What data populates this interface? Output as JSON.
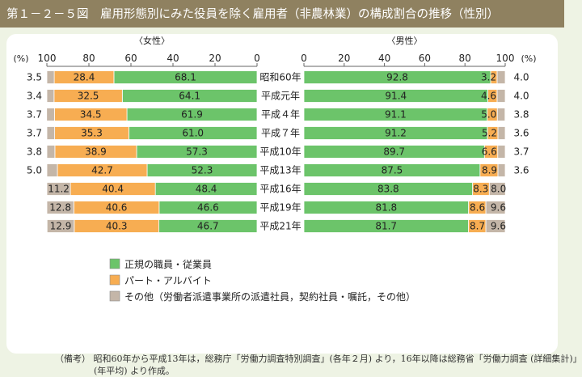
{
  "title": "第１－２－５図　雇用形態別にみた役員を除く雇用者（非農林業）の構成割合の推移（性別）",
  "female_heading": "〈女性〉",
  "male_heading": "〈男性〉",
  "pct_unit": "(%)",
  "legend": [
    {
      "label": "正規の職員・従業員",
      "color": "#6cc46a"
    },
    {
      "label": "パート・アルバイト",
      "color": "#f7ad52"
    },
    {
      "label": "その他（労働者派遣事業所の派遣社員，契約社員・嘱託，その他）",
      "color": "#c4b6a8"
    }
  ],
  "notes": {
    "label": "（備考）",
    "line1": "昭和60年から平成13年は，総務庁「労働力調査特別調査」(各年２月) より，16年以降は総務省「労働力調査 (詳細集計)」",
    "line2": "(年平均) より作成。"
  },
  "chart_data": {
    "type": "bar",
    "orientation": "horizontal-stacked",
    "categories": [
      "昭和60年",
      "平成元年",
      "平成４年",
      "平成７年",
      "平成10年",
      "平成13年",
      "平成16年",
      "平成19年",
      "平成21年"
    ],
    "female": {
      "title": "〈女性〉",
      "axis_ticks": [
        100,
        80,
        60,
        40,
        20,
        0
      ],
      "xlim": [
        100,
        0
      ],
      "series": [
        {
          "name": "正規の職員・従業員",
          "color": "#6cc46a",
          "values": [
            68.1,
            64.1,
            61.9,
            61.0,
            57.3,
            52.3,
            48.4,
            46.6,
            46.7
          ]
        },
        {
          "name": "パート・アルバイト",
          "color": "#f7ad52",
          "values": [
            28.4,
            32.5,
            34.5,
            35.3,
            38.9,
            42.7,
            40.4,
            40.6,
            40.3
          ]
        },
        {
          "name": "その他（労働者派遣事業所の派遣社員，契約社員・嘱託，その他）",
          "color": "#c4b6a8",
          "values": [
            3.5,
            3.4,
            3.7,
            3.7,
            3.8,
            5.0,
            11.2,
            12.8,
            12.9
          ]
        }
      ]
    },
    "male": {
      "title": "〈男性〉",
      "axis_ticks": [
        0,
        20,
        40,
        60,
        80,
        100
      ],
      "xlim": [
        0,
        100
      ],
      "series": [
        {
          "name": "正規の職員・従業員",
          "color": "#6cc46a",
          "values": [
            92.8,
            91.4,
            91.1,
            91.2,
            89.7,
            87.5,
            83.8,
            81.8,
            81.7
          ]
        },
        {
          "name": "パート・アルバイト",
          "color": "#f7ad52",
          "values": [
            3.2,
            4.6,
            5.0,
            5.2,
            6.6,
            8.9,
            8.3,
            8.6,
            8.7
          ]
        },
        {
          "name": "その他（労働者派遣事業所の派遣社員，契約社員・嘱託，その他）",
          "color": "#c4b6a8",
          "values": [
            4.0,
            4.0,
            3.8,
            3.6,
            3.7,
            3.6,
            8.0,
            9.6,
            9.6
          ]
        }
      ]
    }
  }
}
